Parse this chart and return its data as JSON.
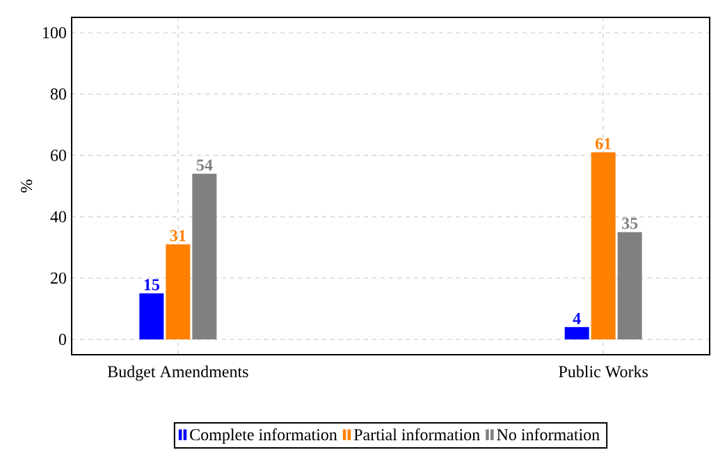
{
  "chart_data": {
    "type": "bar",
    "ylabel": "%",
    "categories": [
      "Budget Amendments",
      "Public Works"
    ],
    "series": [
      {
        "name": "Complete information",
        "color": "#0000ff",
        "values": [
          15,
          4
        ]
      },
      {
        "name": "Partial information",
        "color": "#ff8000",
        "values": [
          31,
          61
        ]
      },
      {
        "name": "No information",
        "color": "#808080",
        "values": [
          54,
          35
        ]
      }
    ],
    "ylim": [
      -5,
      105
    ],
    "yticks": [
      0,
      20,
      40,
      60,
      80,
      100
    ],
    "grid": true,
    "legend": "bottom",
    "data_labels": true
  }
}
